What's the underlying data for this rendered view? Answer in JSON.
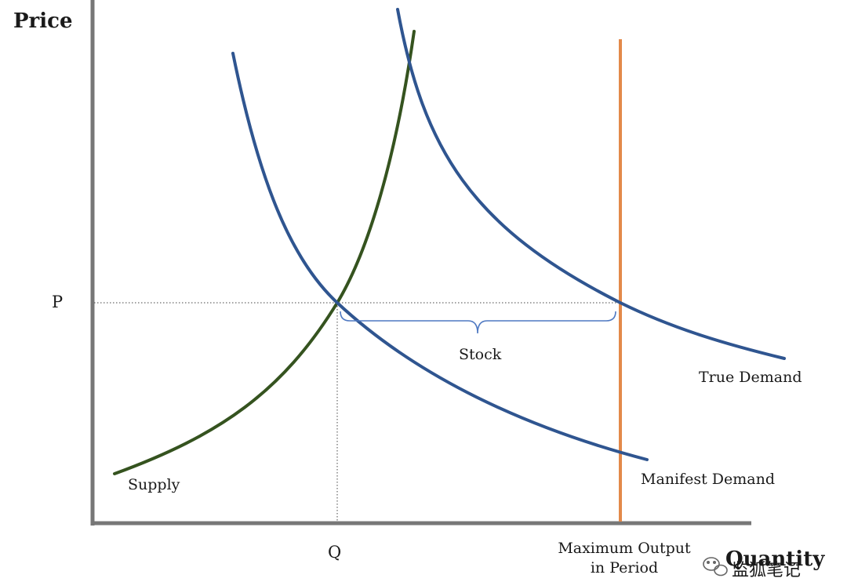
{
  "diagram": {
    "y_axis_title": "Price",
    "x_axis_title": "Quantity",
    "price_tick": "P",
    "quantity_tick": "Q",
    "stock_label": "Stock",
    "supply_label": "Supply",
    "true_demand_label": "True Demand",
    "manifest_demand_label": "Manifest Demand",
    "max_output_label": [
      "Maximum Output",
      "in Period"
    ]
  },
  "colors": {
    "axis": "#777777",
    "demand": "#2f5590",
    "supply": "#35531f",
    "max_output": "#e3894a",
    "guide": "#444444",
    "brace": "#4f79c2"
  },
  "watermark": {
    "icon": "wechat-icon",
    "text": "监狐笔记"
  }
}
